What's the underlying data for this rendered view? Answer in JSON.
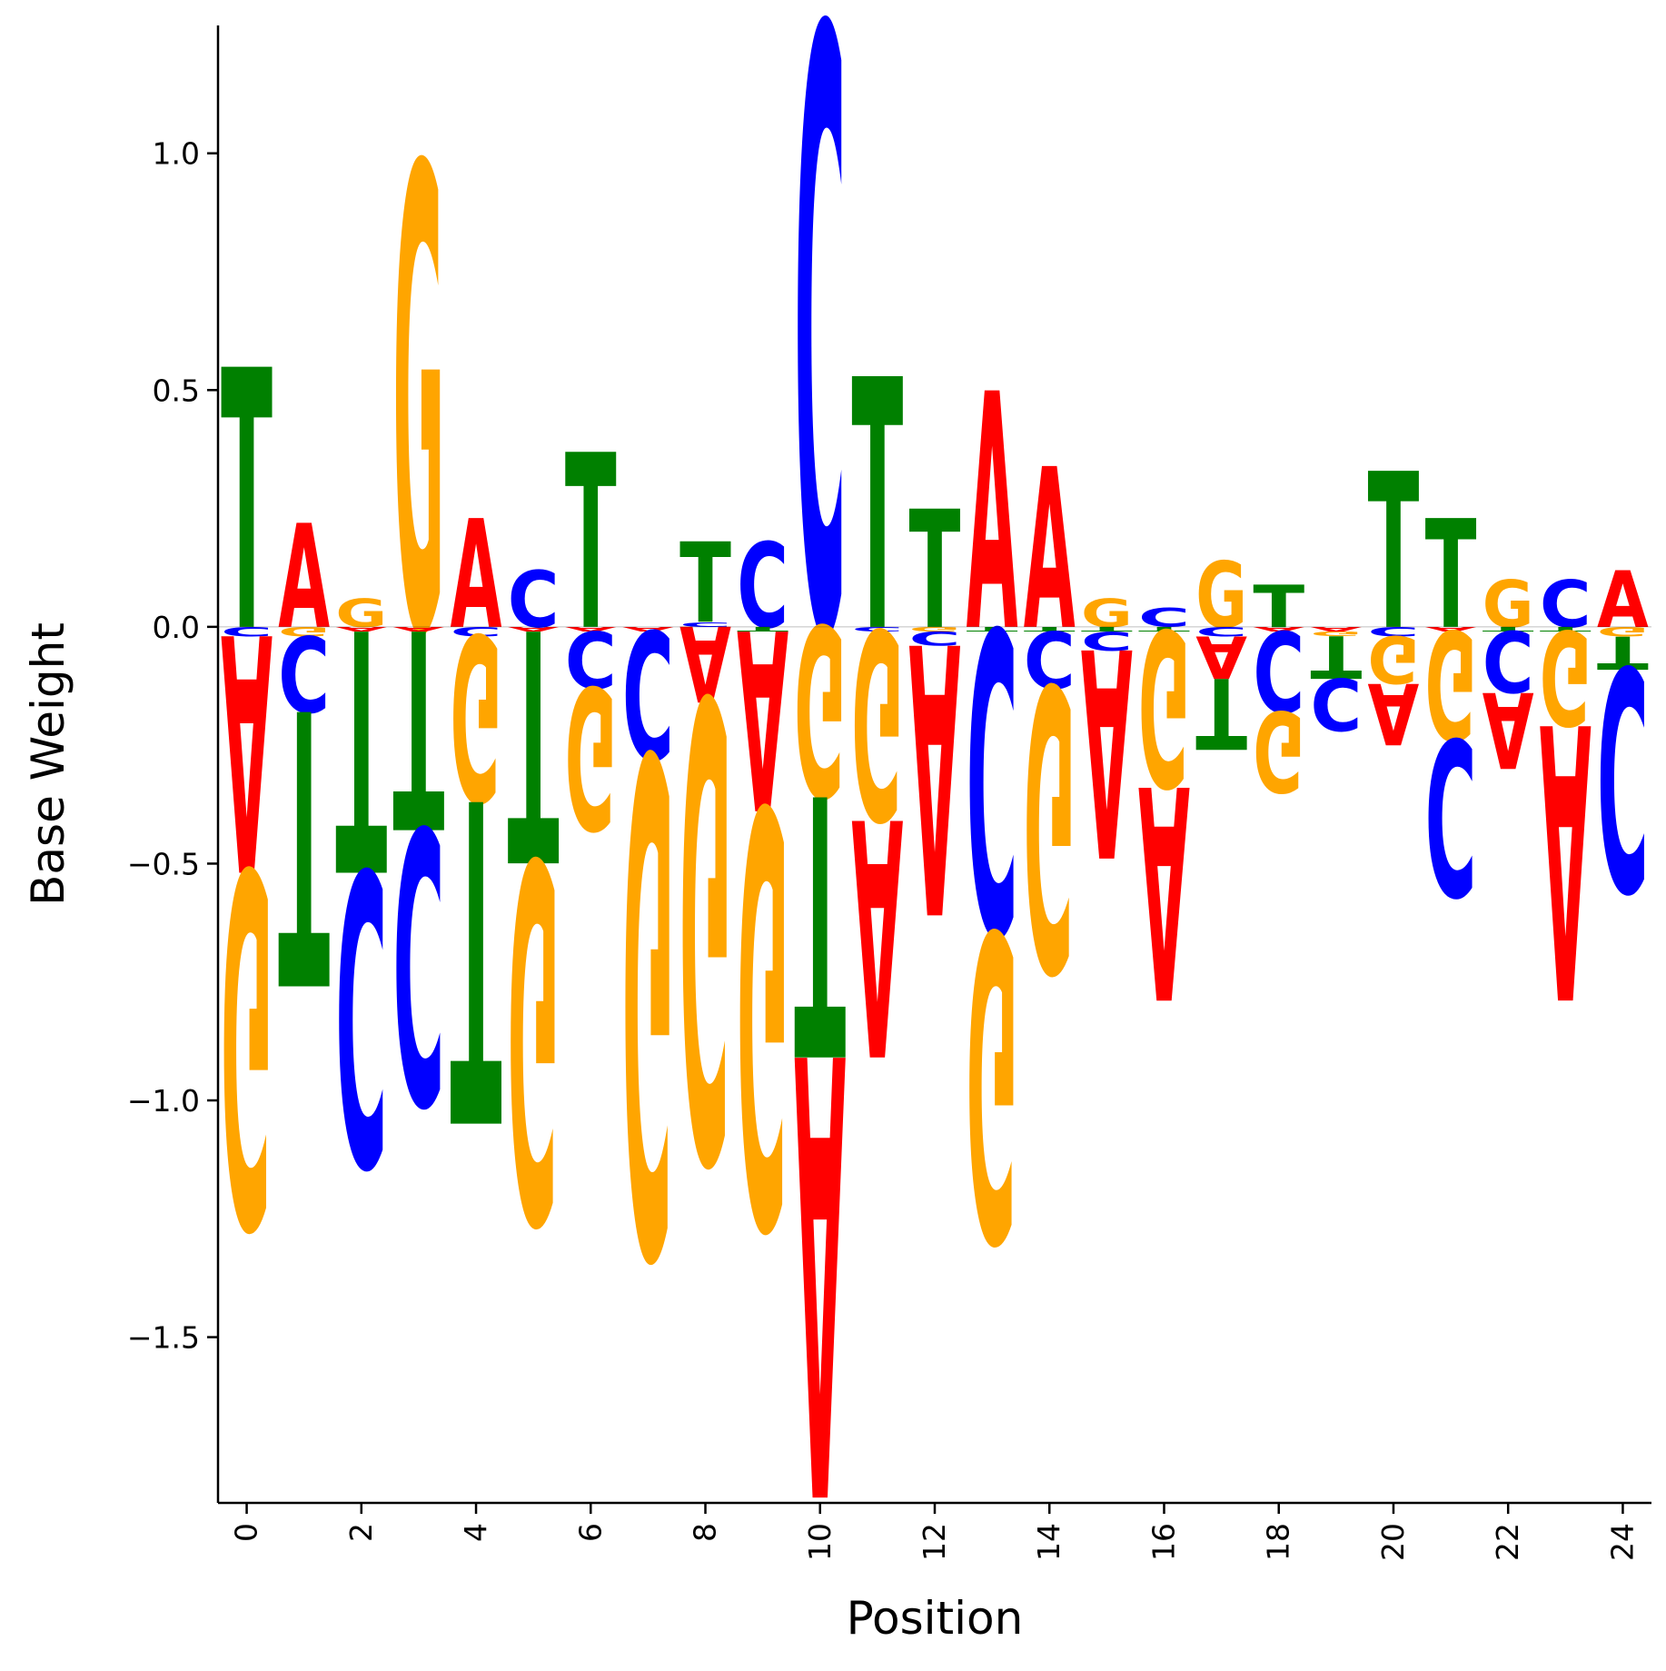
{
  "chart_data": {
    "type": "sequence-logo",
    "xlabel": "Position",
    "ylabel": "Base Weight",
    "xlim": [
      -0.5,
      24.5
    ],
    "ylim": [
      -1.85,
      1.27
    ],
    "x_ticks": [
      0,
      2,
      4,
      6,
      8,
      10,
      12,
      14,
      16,
      18,
      20,
      22,
      24
    ],
    "y_ticks": [
      -1.5,
      -1.0,
      -0.5,
      0.0,
      0.5,
      1.0
    ],
    "y_tick_labels": [
      "−1.5",
      "−1.0",
      "−0.5",
      "0.0",
      "0.5",
      "1.0"
    ],
    "x_tick_labels": [
      "0",
      "2",
      "4",
      "6",
      "8",
      "10",
      "12",
      "14",
      "16",
      "18",
      "20",
      "22",
      "24"
    ],
    "grid": false,
    "base_colors": {
      "A": "#ff0000",
      "C": "#0000ff",
      "G": "#ffa500",
      "T": "#008000"
    },
    "positions": [
      {
        "pos": 0,
        "weights": {
          "A": -0.5,
          "C": -0.02,
          "G": -0.75,
          "T": 0.55
        }
      },
      {
        "pos": 1,
        "weights": {
          "A": 0.22,
          "C": -0.16,
          "G": -0.02,
          "T": -0.58
        }
      },
      {
        "pos": 2,
        "weights": {
          "A": -0.01,
          "C": -0.62,
          "G": 0.06,
          "T": -0.51
        }
      },
      {
        "pos": 3,
        "weights": {
          "A": -0.01,
          "C": -0.58,
          "G": 0.98,
          "T": -0.42
        }
      },
      {
        "pos": 4,
        "weights": {
          "A": 0.23,
          "C": -0.02,
          "G": -0.35,
          "T": -0.68
        }
      },
      {
        "pos": 5,
        "weights": {
          "A": -0.01,
          "C": 0.12,
          "G": -0.76,
          "T": -0.49
        }
      },
      {
        "pos": 6,
        "weights": {
          "A": -0.01,
          "C": -0.12,
          "G": -0.3,
          "T": 0.37
        }
      },
      {
        "pos": 7,
        "weights": {
          "A": -0.01,
          "C": -0.27,
          "G": -1.05,
          "T": 0.0
        }
      },
      {
        "pos": 8,
        "weights": {
          "A": -0.16,
          "C": 0.01,
          "G": -0.97,
          "T": 0.17
        }
      },
      {
        "pos": 9,
        "weights": {
          "A": -0.38,
          "C": 0.18,
          "G": -0.88,
          "T": -0.01
        }
      },
      {
        "pos": 10,
        "weights": {
          "A": -0.93,
          "C": 1.27,
          "G": -0.36,
          "T": -0.55
        }
      },
      {
        "pos": 11,
        "weights": {
          "A": -0.5,
          "C": -0.01,
          "G": -0.4,
          "T": 0.53
        }
      },
      {
        "pos": 12,
        "weights": {
          "A": -0.57,
          "C": -0.03,
          "G": -0.01,
          "T": 0.25
        }
      },
      {
        "pos": 13,
        "weights": {
          "A": 0.5,
          "C": -0.64,
          "G": -0.65,
          "T": -0.01
        }
      },
      {
        "pos": 14,
        "weights": {
          "A": 0.34,
          "C": -0.12,
          "G": -0.6,
          "T": -0.01
        }
      },
      {
        "pos": 15,
        "weights": {
          "A": -0.44,
          "C": -0.04,
          "G": 0.06,
          "T": -0.01
        }
      },
      {
        "pos": 16,
        "weights": {
          "A": -0.45,
          "C": 0.04,
          "G": -0.33,
          "T": -0.01
        }
      },
      {
        "pos": 17,
        "weights": {
          "A": -0.09,
          "C": -0.02,
          "G": 0.14,
          "T": -0.15
        }
      },
      {
        "pos": 18,
        "weights": {
          "A": -0.01,
          "C": -0.17,
          "G": -0.17,
          "T": 0.09
        }
      },
      {
        "pos": 19,
        "weights": {
          "A": -0.01,
          "C": -0.11,
          "G": -0.01,
          "T": -0.09
        }
      },
      {
        "pos": 20,
        "weights": {
          "A": -0.13,
          "C": -0.02,
          "G": -0.1,
          "T": 0.33
        }
      },
      {
        "pos": 21,
        "weights": {
          "A": -0.01,
          "C": -0.33,
          "G": -0.23,
          "T": 0.23
        }
      },
      {
        "pos": 22,
        "weights": {
          "A": -0.16,
          "C": -0.13,
          "G": 0.1,
          "T": -0.01
        }
      },
      {
        "pos": 23,
        "weights": {
          "A": -0.58,
          "C": 0.1,
          "G": -0.2,
          "T": -0.01
        }
      },
      {
        "pos": 24,
        "weights": {
          "A": 0.12,
          "C": -0.47,
          "G": -0.02,
          "T": -0.07
        }
      }
    ]
  }
}
